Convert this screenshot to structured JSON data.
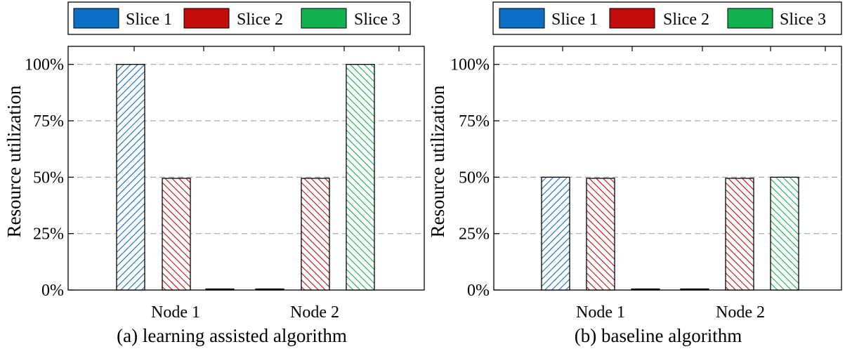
{
  "colors": {
    "slice1": "#0b6fc6",
    "slice2": "#c40c0c",
    "slice3": "#12b04e",
    "grid": "#a6a6a6"
  },
  "chart_data": [
    {
      "type": "bar",
      "title": "(a) learning assisted algorithm",
      "xlabel": "",
      "ylabel": "Resource utilization",
      "categories": [
        "Node 1",
        "Node 2"
      ],
      "yticks": [
        "0%",
        "25%",
        "50%",
        "75%",
        "100%"
      ],
      "ylim": [
        0,
        108
      ],
      "grid": "horizontal dashed",
      "legend_position": "top",
      "series": [
        {
          "name": "Slice 1",
          "color": "slice1",
          "hatch": "diagonal-up",
          "values": [
            100,
            0
          ]
        },
        {
          "name": "Slice 2",
          "color": "slice2",
          "hatch": "diagonal-down",
          "values": [
            49.5,
            49.5
          ]
        },
        {
          "name": "Slice 3",
          "color": "slice3",
          "hatch": "diagonal-down",
          "values": [
            0,
            100
          ]
        }
      ]
    },
    {
      "type": "bar",
      "title": "(b) baseline algorithm",
      "xlabel": "",
      "ylabel": "Resource utilization",
      "categories": [
        "Node 1",
        "Node 2"
      ],
      "yticks": [
        "0%",
        "25%",
        "50%",
        "75%",
        "100%"
      ],
      "ylim": [
        0,
        108
      ],
      "grid": "horizontal dashed",
      "legend_position": "top",
      "series": [
        {
          "name": "Slice 1",
          "color": "slice1",
          "hatch": "diagonal-up",
          "values": [
            50,
            0
          ]
        },
        {
          "name": "Slice 2",
          "color": "slice2",
          "hatch": "diagonal-down",
          "values": [
            49.5,
            49.5
          ]
        },
        {
          "name": "Slice 3",
          "color": "slice3",
          "hatch": "diagonal-down",
          "values": [
            0,
            50
          ]
        }
      ]
    }
  ]
}
